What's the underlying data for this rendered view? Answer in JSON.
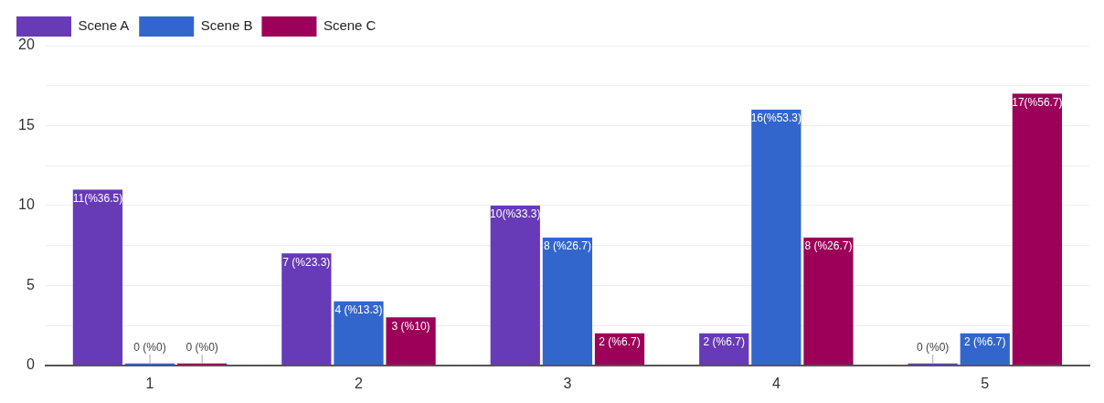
{
  "chart_data": {
    "type": "bar",
    "categories": [
      "1",
      "2",
      "3",
      "4",
      "5"
    ],
    "series": [
      {
        "name": "Scene A",
        "color": "#673ab7",
        "values": [
          11,
          7,
          10,
          2,
          0
        ],
        "value_labels": [
          "11(%36.5)",
          "7 (%23.3)",
          "10(%33.3)",
          "2 (%6.7)",
          "0 (%0)"
        ]
      },
      {
        "name": "Scene B",
        "color": "#3366cc",
        "values": [
          0,
          4,
          8,
          16,
          2
        ],
        "value_labels": [
          "0 (%0)",
          "4 (%13.3)",
          "8 (%26.7)",
          "16(%53.3)",
          "2 (%6.7)"
        ]
      },
      {
        "name": "Scene C",
        "color": "#9c0059",
        "values": [
          0,
          3,
          2,
          8,
          17
        ],
        "value_labels": [
          "0 (%0)",
          "3 (%10)",
          "2 (%6.7)",
          "8 (%26.7)",
          "17(%56.7)"
        ]
      }
    ],
    "ylim": [
      0,
      20
    ],
    "yticks": [
      0,
      {
        "value": 2.5,
        "label": null
      },
      5,
      {
        "value": 7.5,
        "label": null
      },
      10,
      {
        "value": 12.5,
        "label": null
      },
      15,
      {
        "value": 17.5,
        "label": null
      },
      20
    ],
    "grid": "y",
    "legend": "top left"
  }
}
